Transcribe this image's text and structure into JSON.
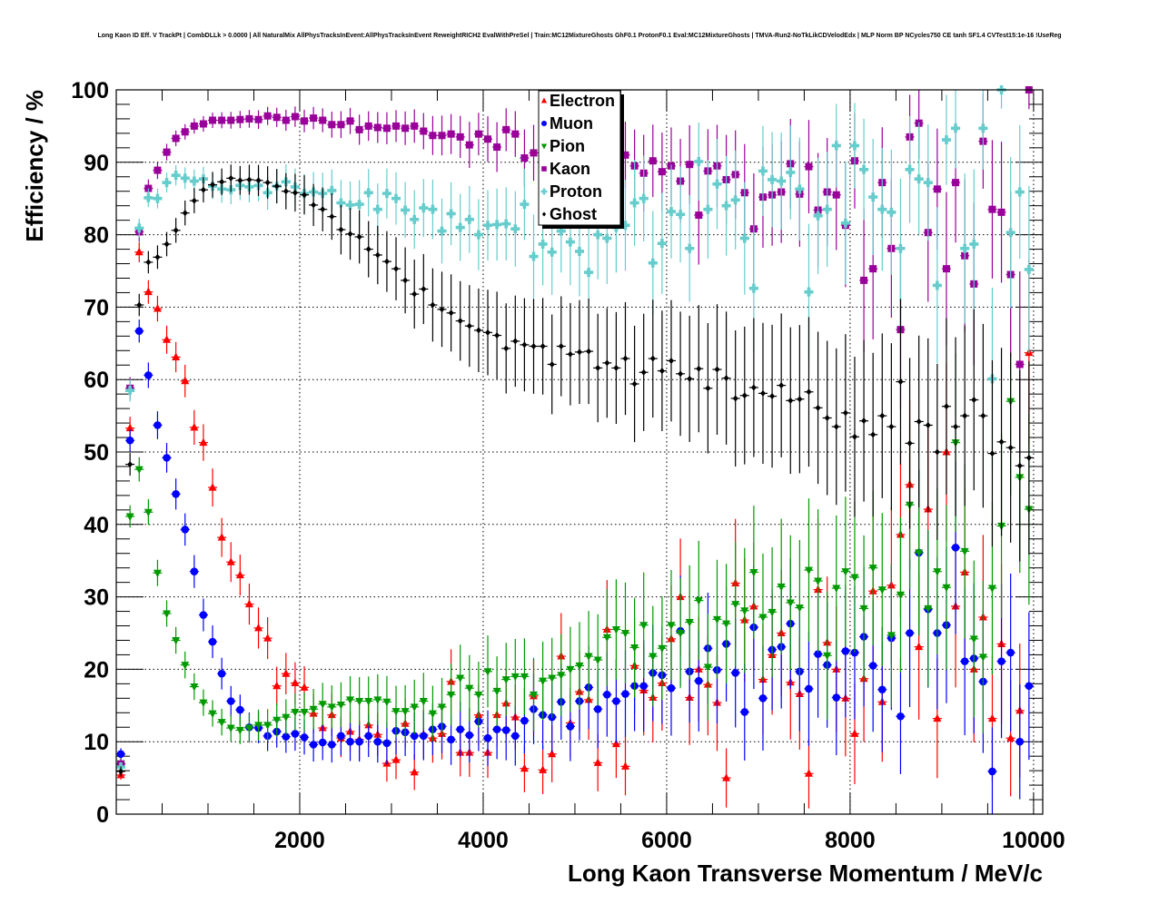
{
  "chart_data": {
    "type": "scatter",
    "title": "Long Kaon ID Eff. V TrackPt | CombDLLk > 0.0000 | All NaturalMix AllPhysTracksInEvent:AllPhysTracksInEvent ReweightRICH2 EvalWithPreSel | Train:MC12MixtureGhosts GhF0.1 ProtonF0.1 Eval:MC12MixtureGhosts | TMVA-Run2-NoTkLikCDVelodEdx | MLP Norm BP NCycles750 CE tanh SF1.4 CVTest15:1e-16 !UseReg",
    "xlabel": "Long Kaon Transverse Momentum / MeV/c",
    "ylabel": "Efficiency / %",
    "xlim": [
      0,
      10100
    ],
    "ylim": [
      0,
      100
    ],
    "grid": true,
    "legend_position": "top-center",
    "xticks": [
      "2000",
      "4000",
      "6000",
      "8000",
      "10000"
    ],
    "xtick_values": [
      2000,
      4000,
      6000,
      8000,
      10000
    ],
    "yticks": [
      "0",
      "10",
      "20",
      "30",
      "40",
      "50",
      "60",
      "70",
      "80",
      "90",
      "100"
    ],
    "ytick_values": [
      0,
      10,
      20,
      30,
      40,
      50,
      60,
      70,
      80,
      90,
      100
    ],
    "x_start": 50,
    "x_step": 100,
    "series": [
      {
        "name": "Electron",
        "marker": "triangle-up",
        "color": "#ff0000",
        "values": [
          5.4,
          53.3,
          77.6,
          72.1,
          69.8,
          65.5,
          63.1,
          59.8,
          53.4,
          51.3,
          45.1,
          38.2,
          34.8,
          33.0,
          29.0,
          25.7,
          24.3,
          17.7,
          19.4,
          18.1,
          17.5,
          13.9,
          11.9,
          13.7,
          10.5,
          11.4,
          10.3,
          12.3,
          11.0,
          7.0,
          7.5,
          12.5,
          5.8,
          11.0,
          10.5,
          11.1,
          18.3,
          8.5,
          8.5,
          13.7,
          8.5,
          13.7,
          15.3,
          13.4,
          6.3,
          16.3,
          6.1,
          8.3,
          21.8,
          12.6,
          16.9,
          15.8,
          7.1,
          25.5,
          9.7,
          6.6,
          20.5,
          17.1,
          16.1,
          18.1,
          24.2,
          30.0,
          16.1,
          20.0,
          17.9,
          15.4,
          5.0,
          31.9,
          26.8,
          28.7,
          18.6,
          22.0,
          25.0,
          18.2,
          16.6,
          5.6,
          31.0,
          23.7,
          20.0,
          16.0,
          11.1,
          18.7,
          30.8,
          15.5,
          31.6,
          38.6,
          45.5,
          23.1,
          42.1,
          13.2,
          50.0,
          28.7,
          33.4,
          20.0,
          27.2,
          13.2,
          23.5,
          10.5,
          14.3,
          63.7
        ]
      },
      {
        "name": "Muon",
        "marker": "circle",
        "color": "#0000ff",
        "values": [
          8.3,
          51.6,
          66.7,
          60.6,
          53.7,
          49.2,
          44.2,
          39.3,
          33.5,
          27.5,
          23.8,
          19.4,
          15.6,
          14.4,
          12.0,
          11.9,
          10.8,
          11.4,
          10.7,
          11.1,
          10.6,
          9.6,
          9.9,
          9.6,
          10.8,
          10.0,
          10.0,
          10.8,
          10.0,
          9.8,
          11.5,
          11.3,
          10.8,
          10.8,
          11.7,
          12.1,
          10.3,
          11.7,
          10.9,
          12.8,
          10.5,
          11.7,
          11.6,
          10.8,
          12.9,
          14.5,
          13.7,
          13.4,
          15.5,
          12.1,
          15.6,
          17.5,
          14.5,
          16.5,
          15.6,
          16.6,
          17.7,
          17.7,
          19.5,
          19.2,
          17.4,
          25.3,
          19.7,
          18.4,
          22.9,
          19.9,
          23.5,
          19.5,
          14.1,
          25.8,
          16.0,
          22.7,
          23.1,
          26.3,
          19.7,
          17.3,
          22.1,
          20.6,
          16.1,
          22.5,
          22.3,
          24.5,
          20.5,
          17.2,
          24.3,
          13.5,
          25.0,
          36.1,
          28.3,
          25.0,
          26.1,
          36.8,
          21.1,
          21.5,
          18.3,
          5.9,
          21.1,
          22.3,
          10.0,
          17.7
        ]
      },
      {
        "name": "Pion",
        "marker": "triangle-down",
        "color": "#009900",
        "values": [
          7.0,
          41.1,
          47.6,
          41.7,
          33.3,
          27.7,
          24.0,
          20.6,
          17.6,
          15.4,
          13.9,
          12.7,
          11.9,
          11.6,
          11.9,
          12.3,
          12.3,
          13.0,
          13.4,
          14.1,
          14.1,
          14.5,
          15.2,
          14.8,
          15.1,
          15.8,
          15.6,
          15.6,
          15.8,
          15.5,
          14.2,
          14.2,
          14.8,
          15.6,
          13.9,
          14.8,
          16.5,
          18.8,
          17.4,
          16.5,
          19.7,
          17.0,
          18.6,
          19.0,
          19.0,
          16.5,
          18.4,
          18.8,
          19.2,
          20.0,
          20.5,
          21.8,
          21.3,
          24.4,
          25.5,
          25.0,
          23.0,
          26.1,
          21.8,
          22.9,
          26.1,
          25.0,
          26.5,
          29.5,
          20.3,
          26.9,
          26.3,
          29.0,
          28.1,
          33.4,
          27.2,
          27.9,
          31.4,
          29.2,
          28.5,
          33.7,
          32.2,
          21.9,
          31.2,
          33.5,
          32.7,
          28.4,
          34.0,
          31.0,
          24.7,
          30.3,
          42.7,
          36.1,
          28.4,
          33.5,
          31.3,
          51.3,
          36.3,
          24.2,
          21.7,
          31.2,
          39.8,
          57.0,
          46.5,
          42.1
        ]
      },
      {
        "name": "Kaon",
        "marker": "square",
        "color": "#990099",
        "values": [
          6.9,
          58.8,
          80.4,
          86.4,
          88.9,
          91.4,
          93.3,
          94.2,
          95.0,
          95.3,
          95.8,
          95.8,
          95.8,
          95.9,
          96.0,
          95.9,
          96.4,
          96.2,
          95.8,
          96.3,
          95.7,
          96.1,
          95.8,
          95.2,
          95.2,
          95.7,
          94.5,
          95.0,
          94.8,
          94.7,
          95.0,
          94.7,
          95.0,
          94.3,
          93.7,
          93.7,
          93.9,
          93.5,
          92.4,
          93.9,
          93.2,
          92.1,
          94.5,
          93.9,
          90.6,
          91.3,
          90.0,
          91.5,
          90.5,
          89.0,
          90.0,
          90.8,
          89.5,
          90.5,
          90.2,
          91.0,
          89.5,
          88.5,
          90.2,
          88.7,
          89.5,
          87.4,
          89.7,
          82.7,
          88.8,
          89.5,
          87.6,
          88.3,
          85.8,
          80.8,
          85.2,
          85.5,
          85.9,
          89.8,
          85.6,
          89.4,
          83.4,
          85.9,
          85.5,
          81.3,
          90.2,
          73.7,
          75.3,
          87.2,
          78.1,
          66.9,
          93.5,
          95.4,
          80.3,
          86.3,
          75.3,
          87.2,
          77.1,
          73.2,
          92.9,
          83.5,
          83.1,
          74.5,
          62.1,
          100.0
        ]
      },
      {
        "name": "Proton",
        "marker": "cross",
        "color": "#66cccc",
        "values": [
          6.5,
          58.5,
          80.9,
          85.1,
          85.0,
          87.2,
          88.2,
          87.8,
          87.4,
          87.7,
          86.7,
          86.3,
          86.2,
          86.8,
          86.6,
          86.8,
          85.8,
          86.7,
          87.3,
          86.6,
          85.7,
          85.9,
          85.7,
          86.1,
          84.4,
          84.1,
          84.2,
          85.8,
          83.5,
          85.7,
          85.0,
          83.4,
          82.1,
          83.7,
          83.5,
          80.5,
          82.9,
          81.0,
          82.1,
          80.0,
          81.3,
          81.4,
          81.5,
          80.8,
          84.2,
          77.0,
          78.7,
          77.6,
          80.5,
          79.0,
          77.7,
          74.8,
          80.0,
          79.5,
          81.0,
          81.3,
          84.4,
          85.0,
          76.1,
          78.8,
          83.2,
          82.8,
          78.1,
          90.1,
          83.5,
          87.0,
          84.0,
          84.8,
          79.5,
          72.6,
          88.8,
          87.6,
          87.4,
          88.6,
          86.3,
          72.1,
          82.6,
          83.5,
          92.3,
          81.6,
          92.3,
          89.0,
          85.2,
          83.5,
          83.1,
          78.1,
          89.0,
          87.7,
          87.2,
          73.0,
          93.1,
          94.7,
          78.1,
          78.7,
          94.7,
          60.1,
          100.0,
          80.3,
          85.9,
          75.2
        ]
      },
      {
        "name": "Ghost",
        "marker": "small-diamond",
        "color": "#000000",
        "values": [
          5.9,
          48.3,
          70.3,
          76.2,
          76.9,
          78.7,
          80.6,
          83.0,
          84.7,
          86.2,
          86.9,
          87.3,
          87.8,
          87.5,
          87.6,
          87.5,
          87.2,
          86.7,
          86.0,
          85.8,
          85.5,
          84.1,
          83.5,
          82.5,
          80.7,
          80.1,
          79.7,
          78.0,
          77.2,
          76.3,
          75.3,
          73.7,
          71.8,
          72.5,
          70.3,
          69.7,
          69.2,
          68.1,
          67.4,
          66.8,
          66.5,
          66.1,
          64.3,
          65.3,
          64.8,
          64.6,
          64.6,
          62.1,
          64.6,
          63.5,
          63.8,
          63.9,
          61.6,
          62.3,
          61.6,
          62.9,
          59.4,
          61.0,
          62.9,
          61.2,
          62.6,
          60.8,
          60.1,
          61.5,
          58.8,
          61.4,
          60.2,
          57.4,
          57.8,
          58.9,
          58.1,
          57.7,
          59.2,
          57.1,
          57.3,
          58.3,
          56.1,
          54.7,
          53.5,
          55.4,
          52.1,
          54.3,
          52.4,
          55.0,
          53.5,
          59.7,
          51.2,
          54.2,
          53.7,
          50.0,
          56.3,
          53.5,
          55.0,
          57.2,
          55.0,
          49.8,
          51.4,
          50.6,
          48.1,
          49.2
        ]
      }
    ]
  }
}
